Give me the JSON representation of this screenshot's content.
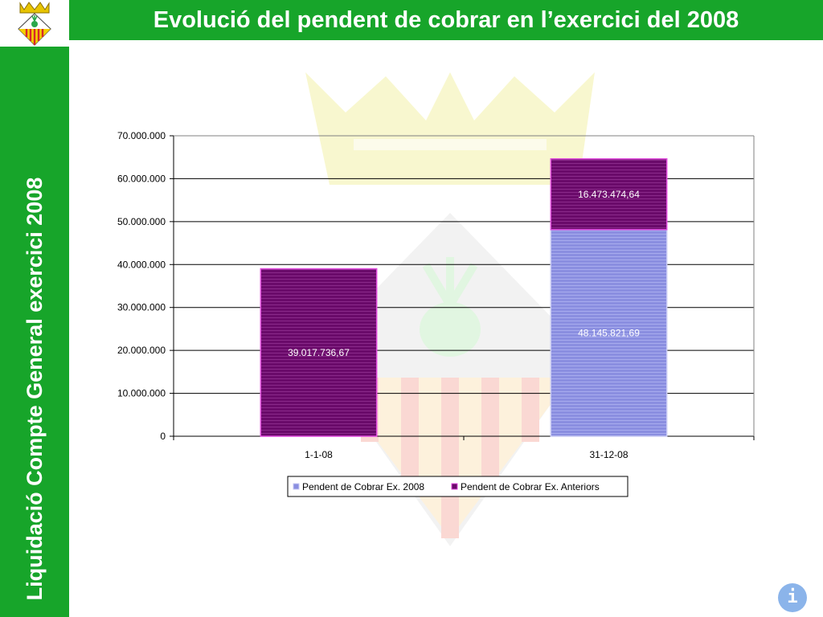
{
  "header": {
    "title": "Evolució del pendent de cobrar en l’exercici del 2008"
  },
  "sidebar": {
    "text": "Liquidació Compte General exercici 2008"
  },
  "logo": {
    "icon": "coat-of-arms-icon"
  },
  "info_button": {
    "label": "i",
    "icon": "info-icon"
  },
  "colors": {
    "brand_green": "#17a52a",
    "series_2008": "#8a8ee0",
    "series_anteriors": "#6a0a6a",
    "info_button": "#8bb4ea"
  },
  "chart_data": {
    "type": "bar",
    "stacked": true,
    "categories": [
      "1-1-08",
      "31-12-08"
    ],
    "series": [
      {
        "name": "Pendent de Cobrar Ex. 2008",
        "values": [
          0,
          48145821.69
        ],
        "labels": [
          "",
          "48.145.821,69"
        ],
        "color": "#8a8ee0"
      },
      {
        "name": "Pendent de Cobrar Ex. Anteriors",
        "values": [
          39017736.67,
          16473474.64
        ],
        "labels": [
          "39.017.736,67",
          "16.473.474,64"
        ],
        "color": "#6a0a6a"
      }
    ],
    "ylim": [
      0,
      70000000
    ],
    "yticks": [
      0,
      10000000,
      20000000,
      30000000,
      40000000,
      50000000,
      60000000,
      70000000
    ],
    "ytick_labels": [
      "0",
      "10.000.000",
      "20.000.000",
      "30.000.000",
      "40.000.000",
      "50.000.000",
      "60.000.000",
      "70.000.000"
    ],
    "grid": true,
    "legend_position": "bottom"
  }
}
